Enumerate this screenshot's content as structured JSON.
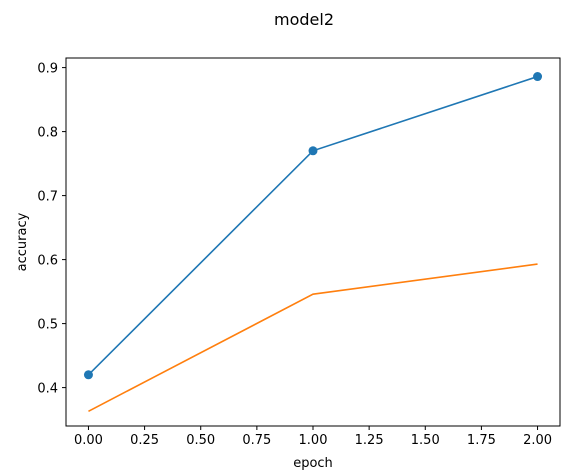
{
  "chart_data": {
    "type": "line",
    "title": "model2",
    "xlabel": "epoch",
    "ylabel": "accuracy",
    "xlim": [
      -0.1,
      2.1
    ],
    "ylim": [
      0.34,
      0.915
    ],
    "xticks": [
      "0.00",
      "0.25",
      "0.50",
      "0.75",
      "1.00",
      "1.25",
      "1.50",
      "1.75",
      "2.00"
    ],
    "yticks": [
      "0.4",
      "0.5",
      "0.6",
      "0.7",
      "0.8",
      "0.9"
    ],
    "grid": false,
    "series": [
      {
        "x": [
          0,
          1,
          2
        ],
        "y": [
          0.42,
          0.77,
          0.886
        ],
        "color": "#1f77b4",
        "marker": "circle"
      },
      {
        "x": [
          0,
          1,
          2
        ],
        "y": [
          0.363,
          0.546,
          0.593
        ],
        "color": "#ff7f0e",
        "marker": "none"
      }
    ]
  }
}
